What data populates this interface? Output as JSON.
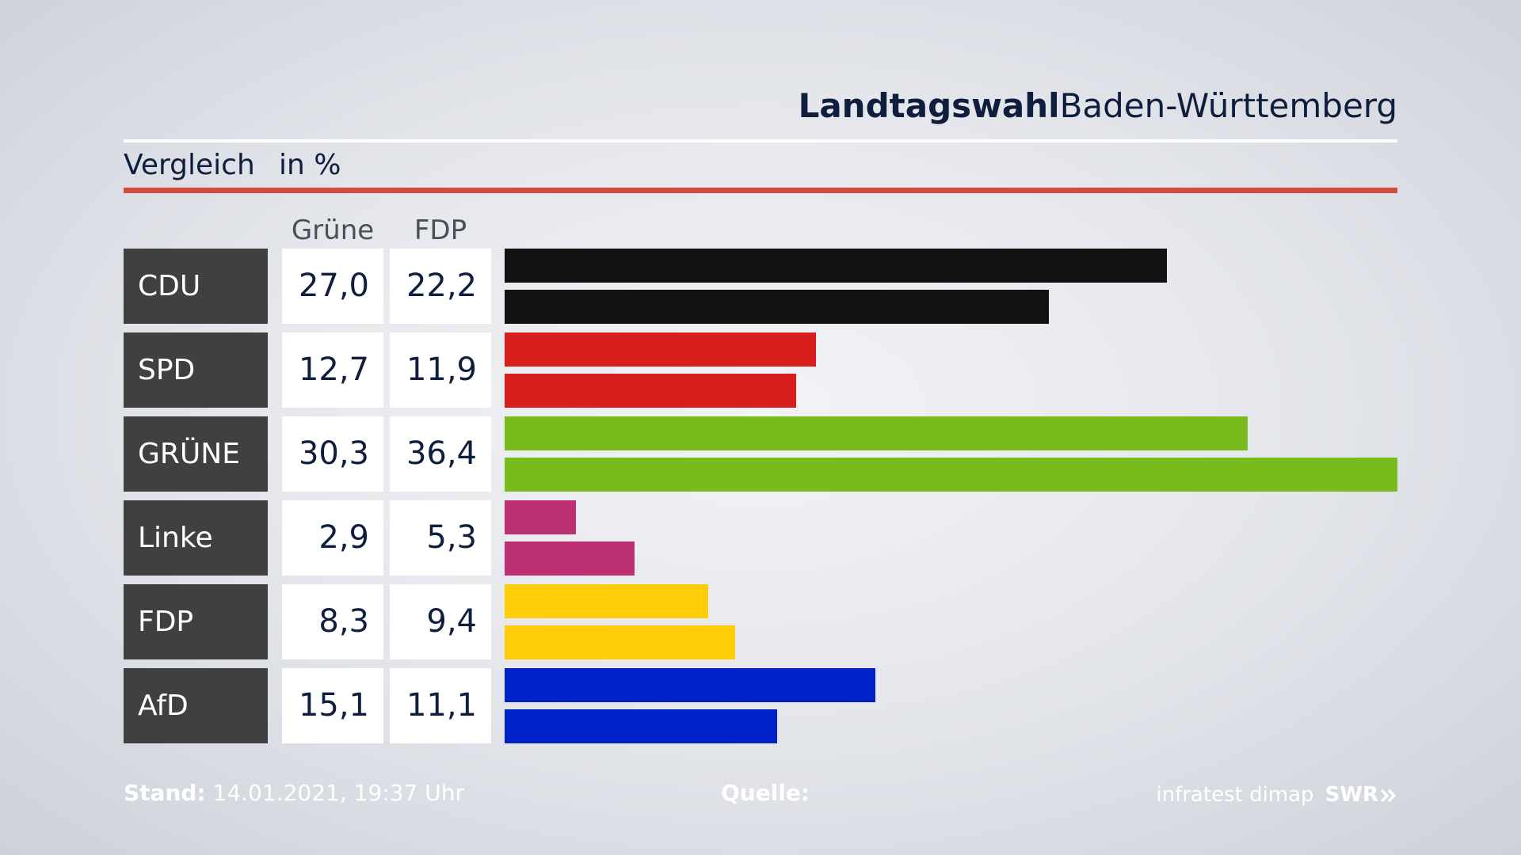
{
  "header": {
    "title_bold": "Landtagswahl",
    "title_regular": "Baden-Württemberg"
  },
  "subtitle": "Vergleich",
  "unit": "in %",
  "footer": {
    "stand_label": "Stand:",
    "stand_value": "14.01.2021, 19:37 Uhr",
    "quelle_label": "Quelle:",
    "source": "infratest dimap",
    "broadcaster": "SWR",
    "broadcaster_icon": "double-chevron-right-icon"
  },
  "colors": {
    "title": "#0f1e3d",
    "accent_rule": "#d44a3e",
    "label_bg": "#404040"
  },
  "chart_data": {
    "type": "bar",
    "orientation": "horizontal",
    "columns": [
      "Grüne",
      "FDP"
    ],
    "categories": [
      "CDU",
      "SPD",
      "GRÜNE",
      "Linke",
      "FDP",
      "AfD"
    ],
    "series": [
      {
        "name": "Grüne",
        "values": [
          27.0,
          12.7,
          30.3,
          2.9,
          8.3,
          15.1
        ],
        "labels": [
          "27,0",
          "12,7",
          "30,3",
          "2,9",
          "8,3",
          "15,1"
        ]
      },
      {
        "name": "FDP",
        "values": [
          22.2,
          11.9,
          36.4,
          5.3,
          9.4,
          11.1
        ],
        "labels": [
          "22,2",
          "11,9",
          "36,4",
          "5,3",
          "9,4",
          "11,1"
        ]
      }
    ],
    "party_colors": [
      "#111111",
      "#d91e1e",
      "#77bb1c",
      "#bc2f72",
      "#ffcc0a",
      "#0021c8"
    ],
    "xlim": [
      0,
      36.4
    ],
    "grid": false,
    "legend": "column headers above value cells"
  }
}
